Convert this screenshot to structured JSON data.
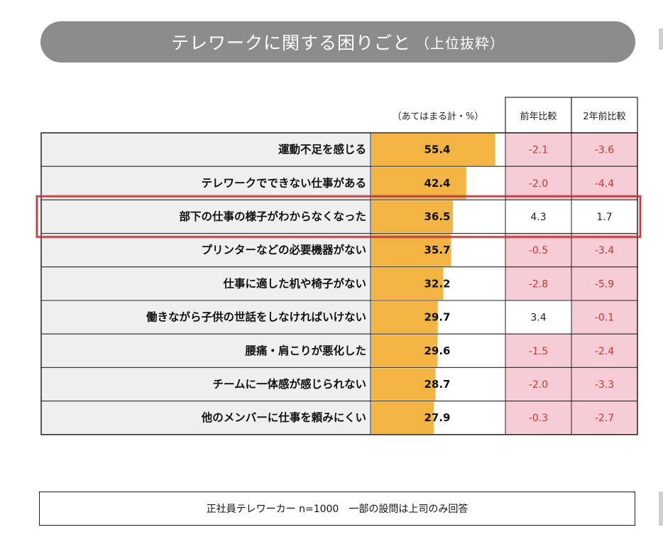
{
  "title": {
    "main": "テレワークに関する困りごと",
    "sub": "（上位抜粋）"
  },
  "colors": {
    "banner": "#8c8c8c",
    "bar": "#f2b544",
    "negative_cell": "#f6cdd6",
    "highlight_border": "#b53b3b",
    "label_bg": "#efefef"
  },
  "chart_data": {
    "type": "bar",
    "orientation": "horizontal",
    "value_header": "（あてはまる計・%）",
    "col_headers": [
      "前年比較",
      "2年前比較"
    ],
    "xlim": [
      0,
      100
    ],
    "highlighted_index": 2,
    "categories": [
      "運動不足を感じる",
      "テレワークでできない仕事がある",
      "部下の仕事の様子がわからなくなった",
      "プリンターなどの必要機器がない",
      "仕事に適した机や椅子がない",
      "働きながら子供の世話をしなければいけない",
      "腰痛・肩こりが悪化した",
      "チームに一体感が感じられない",
      "他のメンバーに仕事を頼みにくい"
    ],
    "values": [
      55.4,
      42.4,
      36.5,
      35.7,
      32.2,
      29.7,
      29.6,
      28.7,
      27.9
    ],
    "value_labels": [
      "55.4",
      "42.4",
      "36.5",
      "35.7",
      "32.2",
      "29.7",
      "29.6",
      "28.7",
      "27.9"
    ],
    "prev_year": [
      "-2.1",
      "-2.0",
      "4.3",
      "-0.5",
      "-2.8",
      "3.4",
      "-1.5",
      "-2.0",
      "-0.3"
    ],
    "two_years": [
      "-3.6",
      "-4.4",
      "1.7",
      "-3.4",
      "-5.9",
      "-0.1",
      "-2.4",
      "-3.3",
      "-2.7"
    ]
  },
  "footnote": "正社員テレワーカー n=1000　一部の設問は上司のみ回答"
}
